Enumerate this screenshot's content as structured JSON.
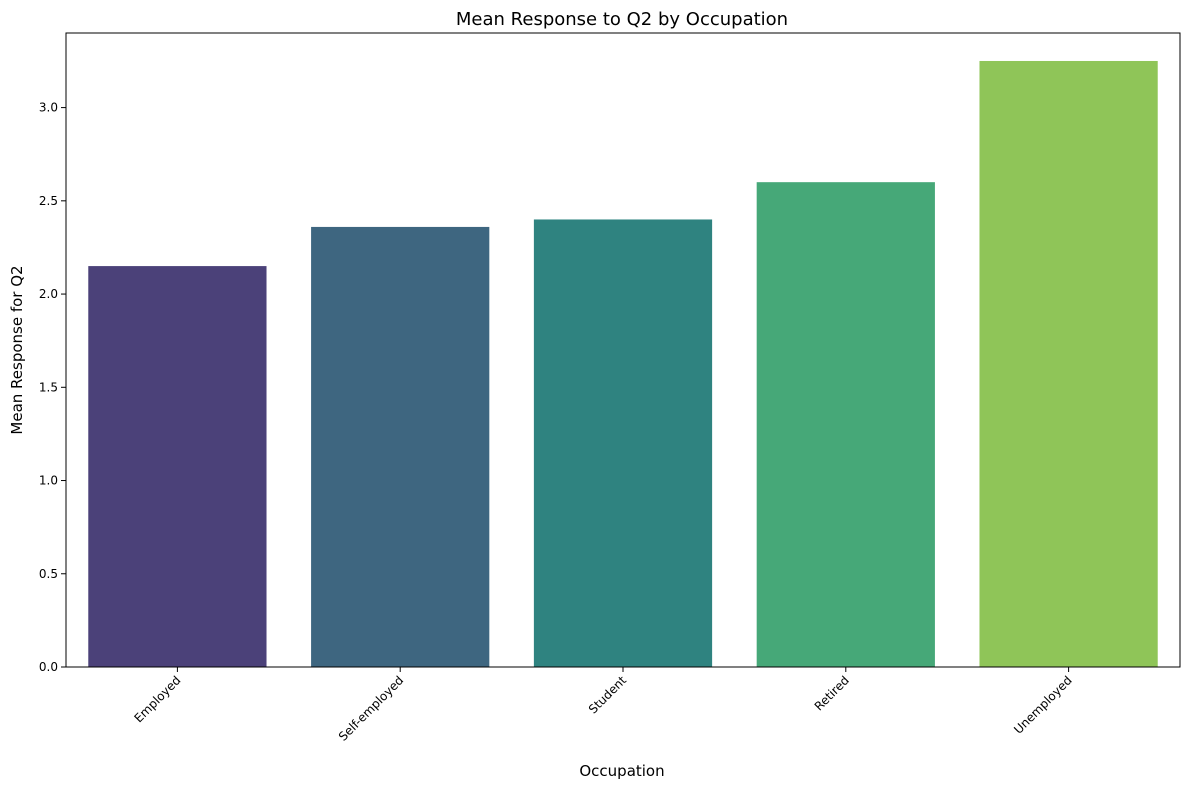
{
  "chart_data": {
    "type": "bar",
    "title": "Mean Response to Q2 by Occupation",
    "xlabel": "Occupation",
    "ylabel": "Mean Response for Q2",
    "categories": [
      "Employed",
      "Self-employed",
      "Student",
      "Retired",
      "Unemployed"
    ],
    "values": [
      2.15,
      2.36,
      2.4,
      2.6,
      3.25
    ],
    "colors": [
      "#4b4179",
      "#3e6680",
      "#2f8380",
      "#46a878",
      "#8fc558"
    ],
    "ylim": [
      0,
      3.4
    ],
    "yticks": [
      0.0,
      0.5,
      1.0,
      1.5,
      2.0,
      2.5,
      3.0
    ],
    "ytick_labels": [
      "0.0",
      "0.5",
      "1.0",
      "1.5",
      "2.0",
      "2.5",
      "3.0"
    ],
    "grid": false,
    "legend": "none"
  }
}
